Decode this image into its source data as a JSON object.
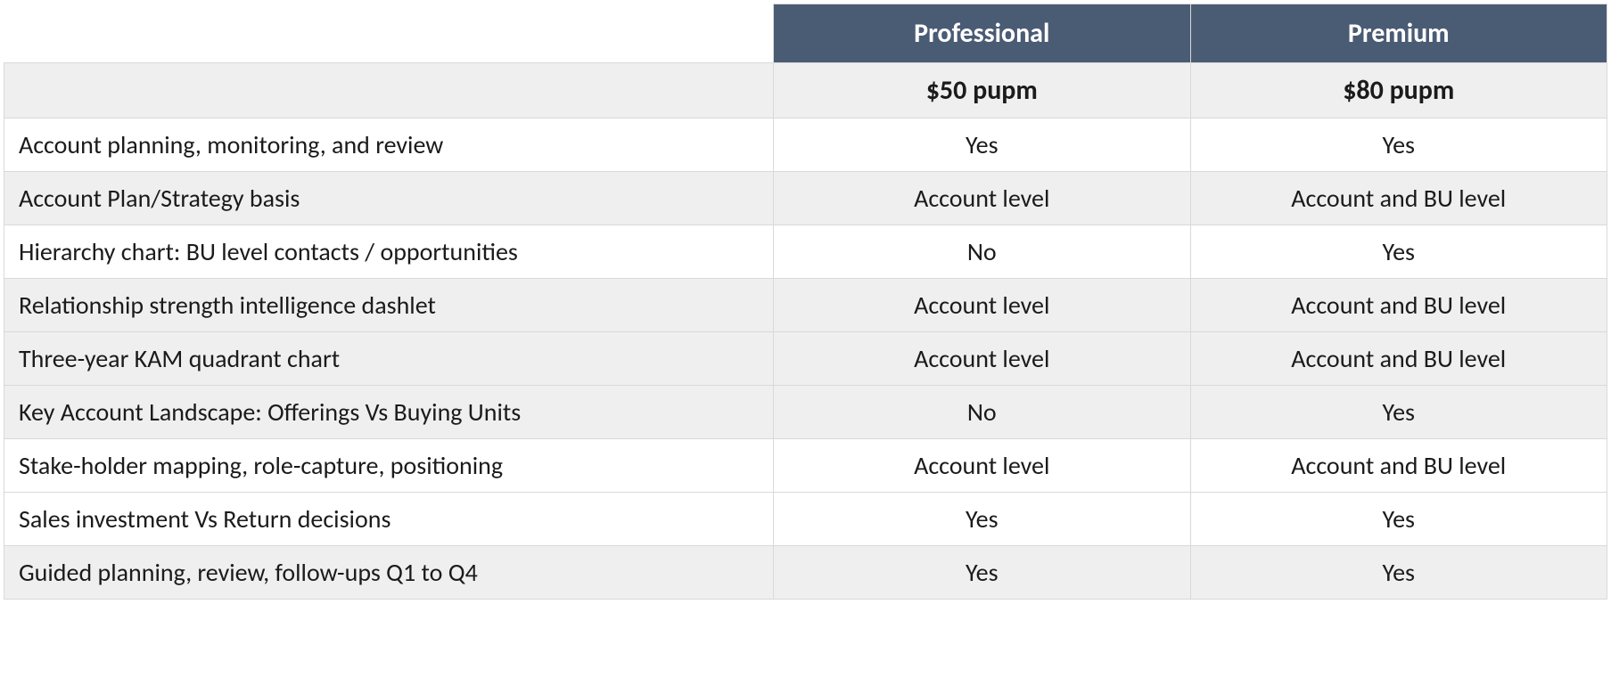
{
  "table": {
    "type": "table",
    "columns": [
      "",
      "Professional",
      "Premium"
    ],
    "column_widths_pct": [
      48,
      26,
      26
    ],
    "header_bg": "#4a5b74",
    "header_fg": "#ffffff",
    "border_color": "#d9d9d9",
    "shade_bg": "#efefef",
    "font_family": "Calibri",
    "header_fontsize_pt": 22,
    "body_fontsize_pt": 21,
    "plans": {
      "professional": {
        "label": "Professional",
        "price": "$50 pupm"
      },
      "premium": {
        "label": "Premium",
        "price": "$80 pupm"
      }
    },
    "shade_row_indices": [
      1,
      3,
      4,
      5,
      8
    ],
    "rows": [
      {
        "feature": "Account planning, monitoring, and review",
        "professional": "Yes",
        "premium": "Yes"
      },
      {
        "feature": "Account Plan/Strategy basis",
        "professional": "Account level",
        "premium": "Account and BU level"
      },
      {
        "feature": "Hierarchy chart: BU level contacts / opportunities",
        "professional": "No",
        "premium": "Yes"
      },
      {
        "feature": "Relationship strength intelligence dashlet",
        "professional": "Account level",
        "premium": "Account and BU level"
      },
      {
        "feature": "Three-year KAM quadrant chart",
        "professional": "Account level",
        "premium": "Account and BU level"
      },
      {
        "feature": "Key Account Landscape: Offerings Vs Buying Units",
        "professional": "No",
        "premium": "Yes"
      },
      {
        "feature": "Stake-holder mapping, role-capture, positioning",
        "professional": "Account level",
        "premium": "Account and BU level"
      },
      {
        "feature": "Sales investment Vs Return decisions",
        "professional": "Yes",
        "premium": "Yes"
      },
      {
        "feature": "Guided planning, review, follow-ups Q1 to Q4",
        "professional": "Yes",
        "premium": "Yes"
      }
    ]
  }
}
